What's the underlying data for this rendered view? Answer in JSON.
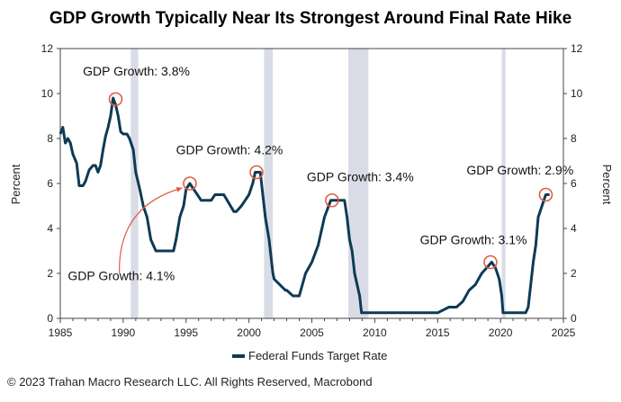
{
  "chart_data": {
    "type": "line",
    "title": "GDP Growth Typically Near Its Strongest Around Final Rate Hike",
    "ylabel": "Percent",
    "ylabel_right": "Percent",
    "xlim": [
      1985,
      2025
    ],
    "ylim": [
      0,
      12
    ],
    "x_ticks": [
      1985,
      1990,
      1995,
      2000,
      2005,
      2010,
      2015,
      2020,
      2025
    ],
    "y_ticks": [
      0,
      2,
      4,
      6,
      8,
      10,
      12
    ],
    "legend": {
      "position": "bottom-center"
    },
    "grid": false,
    "recessions": [
      [
        1990.6,
        1991.2
      ],
      [
        2001.2,
        2001.9
      ],
      [
        2007.9,
        2009.5
      ],
      [
        2020.1,
        2020.4
      ]
    ],
    "series": [
      {
        "name": "Federal Funds Target Rate",
        "color": "#0e3a55",
        "x": [
          1985.0,
          1985.2,
          1985.4,
          1985.6,
          1985.8,
          1986.0,
          1986.3,
          1986.5,
          1986.8,
          1987.0,
          1987.3,
          1987.6,
          1987.8,
          1988.0,
          1988.2,
          1988.4,
          1988.6,
          1988.8,
          1989.0,
          1989.2,
          1989.4,
          1989.6,
          1989.8,
          1990.0,
          1990.3,
          1990.5,
          1990.8,
          1991.0,
          1991.3,
          1991.6,
          1991.9,
          1992.2,
          1992.6,
          1993.0,
          1994.0,
          1994.2,
          1994.5,
          1994.8,
          1995.0,
          1995.3,
          1995.6,
          1995.9,
          1996.2,
          1997.0,
          1997.3,
          1998.0,
          1998.8,
          1998.9,
          1999.0,
          1999.4,
          1999.7,
          2000.0,
          2000.3,
          2000.5,
          2000.9,
          2001.0,
          2001.3,
          2001.6,
          2001.9,
          2002.0,
          2002.9,
          2003.0,
          2003.5,
          2004.0,
          2004.5,
          2005.0,
          2005.5,
          2006.0,
          2006.5,
          2007.0,
          2007.6,
          2007.8,
          2008.0,
          2008.2,
          2008.4,
          2008.8,
          2008.95,
          2009.0,
          2015.0,
          2015.9,
          2016.5,
          2017.0,
          2017.5,
          2018.0,
          2018.5,
          2018.9,
          2019.3,
          2019.6,
          2019.9,
          2020.1,
          2020.2,
          2022.0,
          2022.2,
          2022.4,
          2022.6,
          2022.8,
          2023.0,
          2023.3,
          2023.6,
          2023.9
        ],
        "values": [
          8.2,
          8.5,
          7.8,
          8.0,
          7.8,
          7.3,
          6.9,
          5.9,
          5.9,
          6.1,
          6.6,
          6.8,
          6.8,
          6.5,
          6.8,
          7.5,
          8.1,
          8.5,
          9.0,
          9.8,
          9.5,
          9.0,
          8.3,
          8.2,
          8.2,
          8.0,
          7.5,
          6.5,
          5.8,
          5.0,
          4.5,
          3.5,
          3.0,
          3.0,
          3.0,
          3.5,
          4.5,
          5.0,
          5.75,
          6.0,
          5.75,
          5.5,
          5.25,
          5.25,
          5.5,
          5.5,
          4.75,
          4.75,
          4.75,
          5.0,
          5.25,
          5.5,
          6.0,
          6.5,
          6.5,
          6.0,
          4.5,
          3.5,
          2.0,
          1.75,
          1.25,
          1.25,
          1.0,
          1.0,
          2.0,
          2.5,
          3.25,
          4.5,
          5.25,
          5.25,
          5.25,
          4.5,
          3.5,
          3.0,
          2.0,
          1.0,
          0.25,
          0.25,
          0.25,
          0.5,
          0.5,
          0.75,
          1.25,
          1.5,
          2.0,
          2.25,
          2.5,
          2.25,
          1.75,
          1.0,
          0.25,
          0.25,
          0.5,
          1.5,
          2.5,
          3.25,
          4.5,
          5.0,
          5.5,
          5.5
        ]
      }
    ],
    "markers": [
      [
        1989.4,
        9.75
      ],
      [
        1995.3,
        6.0
      ],
      [
        2000.6,
        6.5
      ],
      [
        2006.6,
        5.25
      ],
      [
        2019.2,
        2.5
      ],
      [
        2023.6,
        5.5
      ]
    ],
    "annotations": [
      {
        "text": "GDP Growth: 3.8%",
        "x": 1986.8,
        "y": 10.8
      },
      {
        "text": "GDP Growth: 4.2%",
        "x": 1994.2,
        "y": 7.3
      },
      {
        "text": "GDP Growth: 3.4%",
        "x": 2004.6,
        "y": 6.1
      },
      {
        "text": "GDP Growth: 2.9%",
        "x": 2017.3,
        "y": 6.4
      },
      {
        "text": "GDP Growth: 3.1%",
        "x": 2013.6,
        "y": 3.3
      },
      {
        "text": "GDP Growth: 4.1%",
        "x": 1985.6,
        "y": 1.7
      }
    ],
    "arrow": {
      "from": [
        1989.7,
        2.0
      ],
      "to": [
        1994.7,
        5.8
      ]
    }
  },
  "footer": "© 2023 Trahan Macro Research LLC. All Rights Reserved, Macrobond"
}
